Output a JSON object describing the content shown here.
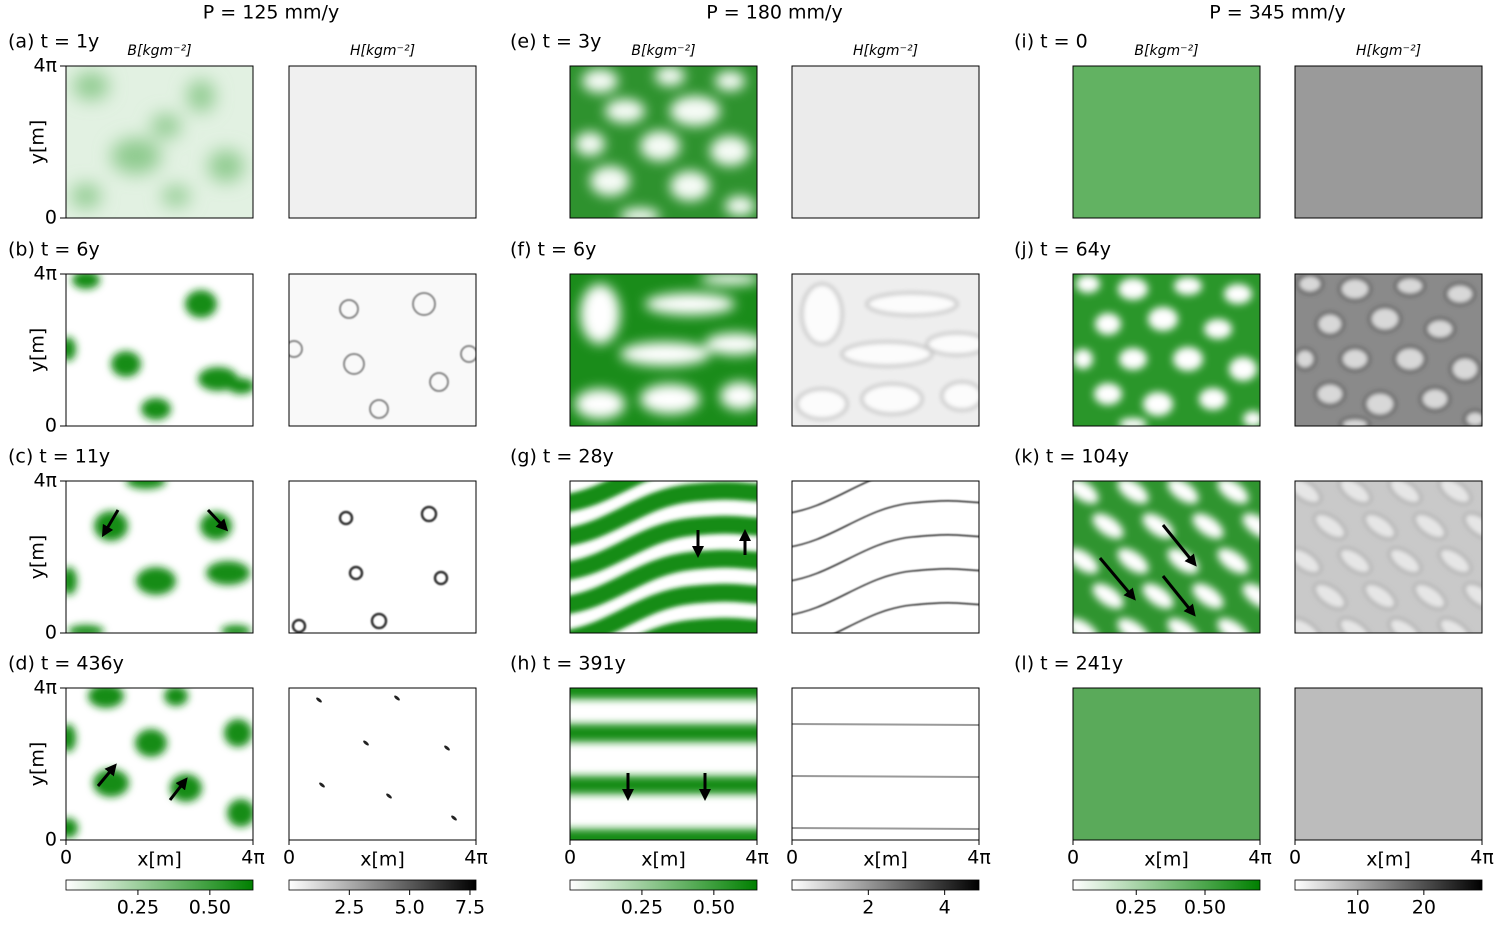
{
  "columns": [
    {
      "title": "P = 125 mm/y",
      "labels": [
        "(a) t = 1y",
        "(b) t = 6y",
        "(c) t = 11y",
        "(d) t = 436y"
      ]
    },
    {
      "title": "P = 180 mm/y",
      "labels": [
        "(e) t = 3y",
        "(f) t = 6y",
        "(g) t = 28y",
        "(h) t = 391y"
      ]
    },
    {
      "title": "P = 345 mm/y",
      "labels": [
        "(i) t = 0",
        "(j) t = 64y",
        "(k) t = 104y",
        "(l) t = 241y"
      ]
    }
  ],
  "b_header": "B[kgm⁻²]",
  "h_header": "H[kgm⁻²]",
  "x_label": "x[m]",
  "y_label": "y[m]",
  "axis_ticks": [
    "0",
    "4π"
  ],
  "colorbars": [
    {
      "lim": [
        0,
        0.65
      ],
      "ticks": [
        0.25,
        {
          "value": 0.5,
          "label": "0.50"
        }
      ],
      "colors": [
        "#ffffff",
        "#008000"
      ]
    },
    {
      "lim": [
        0,
        7.75
      ],
      "ticks": [
        2.5,
        {
          "value": 5,
          "label": "5.0"
        },
        7.5
      ],
      "colors": [
        "#ffffff",
        "#000000"
      ]
    },
    {
      "lim": [
        0,
        0.65
      ],
      "ticks": [
        0.25,
        {
          "value": 0.5,
          "label": "0.50"
        }
      ],
      "colors": [
        "#ffffff",
        "#008000"
      ]
    },
    {
      "lim": [
        0,
        4.9
      ],
      "ticks": [
        2,
        4
      ],
      "colors": [
        "#ffffff",
        "#000000"
      ]
    },
    {
      "lim": [
        0.02,
        0.7
      ],
      "ticks": [
        0.25,
        {
          "value": 0.5,
          "label": "0.50"
        }
      ],
      "colors": [
        "#ffffff",
        "#008000"
      ]
    },
    {
      "lim": [
        0.5,
        28.8
      ],
      "ticks": [
        10,
        20
      ],
      "colors": [
        "#ffffff",
        "#000000"
      ]
    }
  ]
}
